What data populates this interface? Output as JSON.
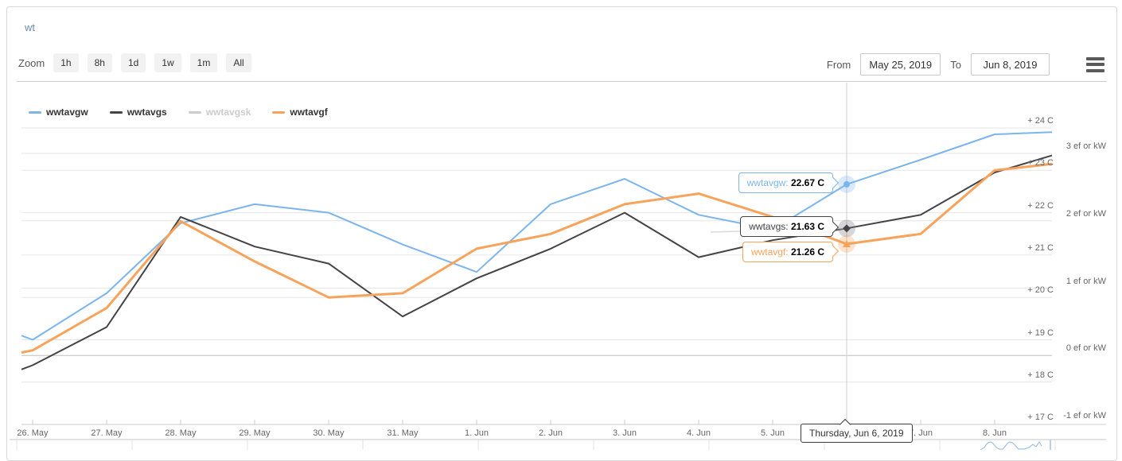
{
  "card": {
    "title": "wt"
  },
  "toolbar": {
    "zoom_label": "Zoom",
    "zoom_buttons": [
      "1h",
      "8h",
      "1d",
      "1w",
      "1m",
      "All"
    ],
    "from_label": "From",
    "from_value": "May 25, 2019",
    "to_label": "To",
    "to_value": "Jun 8, 2019",
    "menu_icon": "hamburger-icon"
  },
  "legend": {
    "items": [
      {
        "name": "wwtavgw",
        "color": "#7cb5ec",
        "enabled": true
      },
      {
        "name": "wwtavgs",
        "color": "#434348",
        "enabled": true
      },
      {
        "name": "wwtavgsk",
        "color": "#cccccc",
        "enabled": false
      },
      {
        "name": "wwtavgf",
        "color": "#f7a35c",
        "enabled": true
      }
    ]
  },
  "tooltips": {
    "points": [
      {
        "series": "wwtavgw",
        "label": "wwtavgw:",
        "value": "22.67 C",
        "color": "#7cb5ec"
      },
      {
        "series": "wwtavgs",
        "label": "wwtavgs:",
        "value": "21.63 C",
        "color": "#434348"
      },
      {
        "series": "wwtavgf",
        "label": "wwtavgf:",
        "value": "21.26 C",
        "color": "#f7a35c"
      }
    ],
    "date": "Thursday, Jun 6, 2019"
  },
  "chart_data": {
    "type": "line",
    "note": "first and last points of each series are partial points clipped at the plot edges (range May 25 - Jun 8, 2019)",
    "x_labels": [
      "",
      "26. May",
      "27. May",
      "28. May",
      "29. May",
      "30. May",
      "31. May",
      "1. Jun",
      "2. Jun",
      "3. Jun",
      "4. Jun",
      "5. Jun",
      "6. Jun",
      "7. Jun",
      "8. Jun",
      ""
    ],
    "hover_x": "Thursday, Jun 6, 2019",
    "series": [
      {
        "name": "wwtavgw",
        "color": "#7cb5ec",
        "visible": true,
        "marker": "circle",
        "hover_value": 22.67,
        "values": [
          19.1,
          19.0,
          20.1,
          21.75,
          22.2,
          22.0,
          21.25,
          20.6,
          22.2,
          22.8,
          21.95,
          21.6,
          22.67,
          23.25,
          23.85,
          23.9
        ]
      },
      {
        "name": "wwtavgs",
        "color": "#434348",
        "visible": true,
        "marker": "diamond",
        "hover_value": 21.63,
        "values": [
          18.3,
          18.4,
          19.3,
          21.9,
          21.2,
          20.8,
          19.55,
          20.45,
          21.15,
          22.0,
          20.95,
          21.35,
          21.63,
          21.95,
          22.95,
          23.35
        ]
      },
      {
        "name": "wwtavgsk",
        "color": "#cccccc",
        "visible": false,
        "marker": "none",
        "hover_value": null,
        "values": []
      },
      {
        "name": "wwtavgf",
        "color": "#f7a35c",
        "visible": true,
        "marker": "triangle",
        "hover_value": 21.26,
        "values": [
          18.7,
          18.75,
          19.75,
          21.8,
          20.85,
          20.0,
          20.1,
          21.15,
          21.5,
          22.2,
          22.45,
          21.9,
          21.26,
          21.5,
          23.0,
          23.15
        ]
      }
    ],
    "y_axis_temp": {
      "unit": "C",
      "values": [
        24,
        23,
        22,
        21,
        20,
        19,
        18,
        17
      ],
      "labels": [
        "+ 24 C",
        "+ 23 C",
        "+ 22 C",
        "+ 21 C",
        "+ 20 C",
        "+ 19 C",
        "+ 18 C",
        "+ 17 C"
      ]
    },
    "y_axis_power": {
      "unit": "ef or kW",
      "values": [
        3,
        2,
        1,
        0,
        -1
      ],
      "labels": [
        "3 ef or kW",
        "2 ef or kW",
        "1 ef or kW",
        "0 ef or kW",
        "-1 ef or kW"
      ]
    },
    "grid": "horizontal",
    "legend_position": "top-left",
    "navigator": true
  }
}
